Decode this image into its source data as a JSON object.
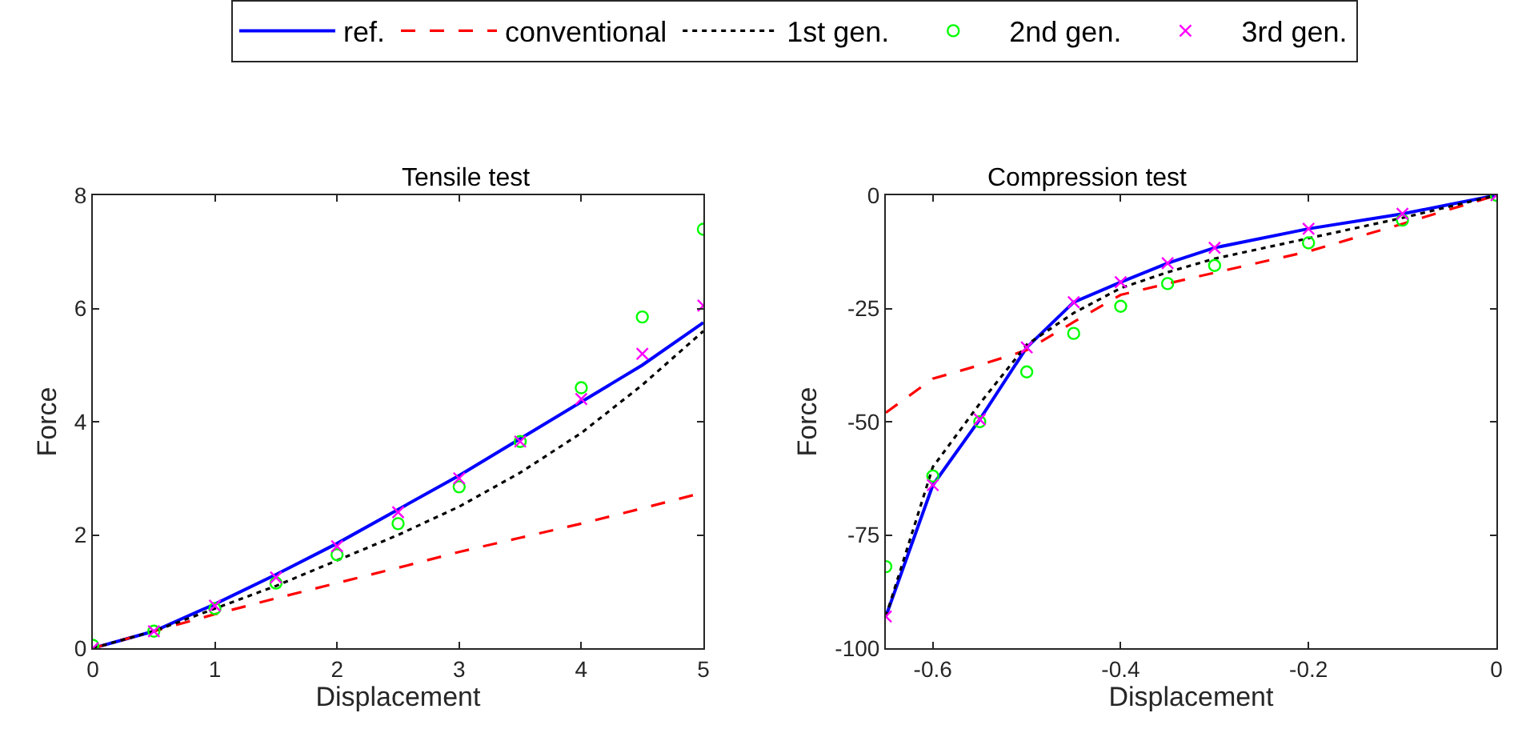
{
  "chart_data": [
    {
      "type": "line",
      "title": "Tensile test",
      "xlabel": "Displacement",
      "ylabel": "Force",
      "xlim": [
        0,
        5
      ],
      "ylim": [
        0,
        8
      ],
      "xticks": [
        0,
        1,
        2,
        3,
        4,
        5
      ],
      "yticks": [
        0,
        2,
        4,
        6,
        8
      ],
      "legend": "top",
      "x": [
        0,
        0.5,
        1,
        1.5,
        2,
        2.5,
        3,
        3.5,
        4,
        4.5,
        5
      ],
      "series": [
        {
          "name": "ref.",
          "color": "#0000ff",
          "line_style": "solid",
          "values": [
            0,
            0.3,
            0.78,
            1.3,
            1.85,
            2.45,
            3.05,
            3.7,
            4.35,
            5.0,
            5.75
          ]
        },
        {
          "name": "conventional",
          "color": "#ff0000",
          "line_style": "dashed",
          "values": [
            0,
            0.3,
            0.6,
            0.88,
            1.15,
            1.42,
            1.7,
            1.95,
            2.2,
            2.47,
            2.75
          ]
        },
        {
          "name": "1st gen.",
          "color": "#000000",
          "line_style": "dotted",
          "values": [
            0,
            0.3,
            0.7,
            1.1,
            1.55,
            2.0,
            2.5,
            3.1,
            3.8,
            4.65,
            5.6
          ]
        },
        {
          "name": "2nd gen.",
          "color": "#00ff00",
          "type": "scatter",
          "marker": "circle",
          "values": [
            0.05,
            0.3,
            0.7,
            1.15,
            1.65,
            2.2,
            2.85,
            3.65,
            4.6,
            5.85,
            7.4
          ]
        },
        {
          "name": "3rd gen.",
          "color": "#ff00ff",
          "type": "scatter",
          "marker": "cross",
          "values": [
            0,
            0.3,
            0.75,
            1.25,
            1.8,
            2.4,
            3.0,
            3.65,
            4.4,
            5.2,
            6.05
          ]
        }
      ]
    },
    {
      "type": "line",
      "title": "Compression test",
      "xlabel": "Displacement",
      "ylabel": "Force",
      "xlim": [
        -0.65,
        0
      ],
      "ylim": [
        -100,
        0
      ],
      "xticks": [
        -0.6,
        -0.4,
        -0.2,
        0
      ],
      "yticks": [
        -100,
        -75,
        -50,
        -25,
        0
      ],
      "x": [
        -0.65,
        -0.6,
        -0.55,
        -0.5,
        -0.45,
        -0.4,
        -0.35,
        -0.3,
        -0.2,
        -0.1,
        0
      ],
      "series": [
        {
          "color": "#0000ff",
          "line_style": "solid",
          "values": [
            -93,
            -64,
            -49.5,
            -33.6,
            -23.6,
            -19.2,
            -15,
            -11.6,
            -7.4,
            -4.1,
            0
          ]
        },
        {
          "color": "#ff0000",
          "line_style": "dashed",
          "values": [
            -48,
            -40.5,
            -37.5,
            -34.2,
            -28,
            -22,
            -19.5,
            -17.1,
            -12.4,
            -6.3,
            0
          ]
        },
        {
          "color": "#000000",
          "line_style": "dotted",
          "values": [
            -93,
            -60,
            -46,
            -33,
            -26,
            -20.5,
            -17,
            -14,
            -9.5,
            -5,
            0
          ]
        },
        {
          "color": "#00ff00",
          "type": "scatter",
          "marker": "circle",
          "values": [
            -82,
            -62,
            -50,
            -39,
            -30.5,
            -24.5,
            -19.5,
            -15.5,
            -10.5,
            -5.5,
            0
          ]
        },
        {
          "color": "#ff00ff",
          "type": "scatter",
          "marker": "cross",
          "values": [
            -93,
            -64,
            -49.5,
            -33.6,
            -23.6,
            -19.2,
            -15,
            -11.6,
            -7.4,
            -4.1,
            0
          ]
        }
      ]
    }
  ]
}
